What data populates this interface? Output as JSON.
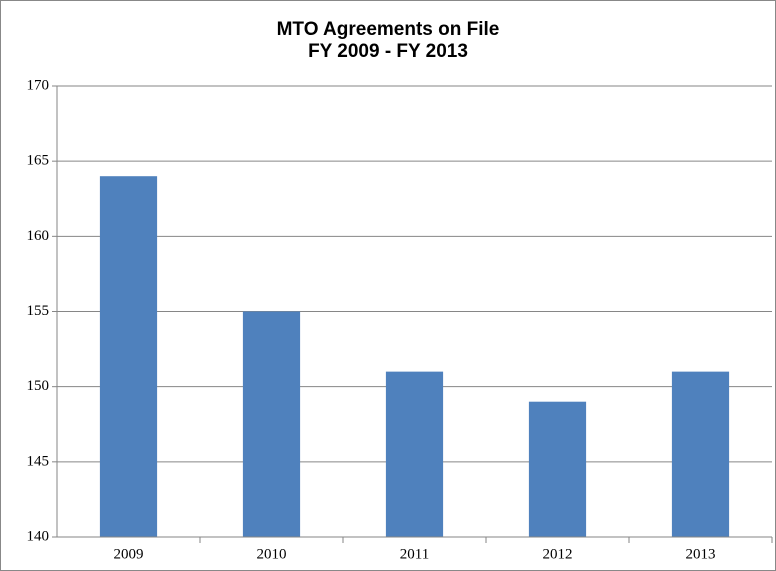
{
  "chart_data": {
    "type": "bar",
    "title": "MTO Agreements on File",
    "subtitle": "FY 2009 - FY 2013",
    "categories": [
      "2009",
      "2010",
      "2011",
      "2012",
      "2013"
    ],
    "values": [
      164,
      155,
      151,
      149,
      151
    ],
    "color": "#4f81bd",
    "ylim": [
      140,
      170
    ],
    "yticks": [
      140,
      145,
      150,
      155,
      160,
      165,
      170
    ],
    "grid": true
  }
}
